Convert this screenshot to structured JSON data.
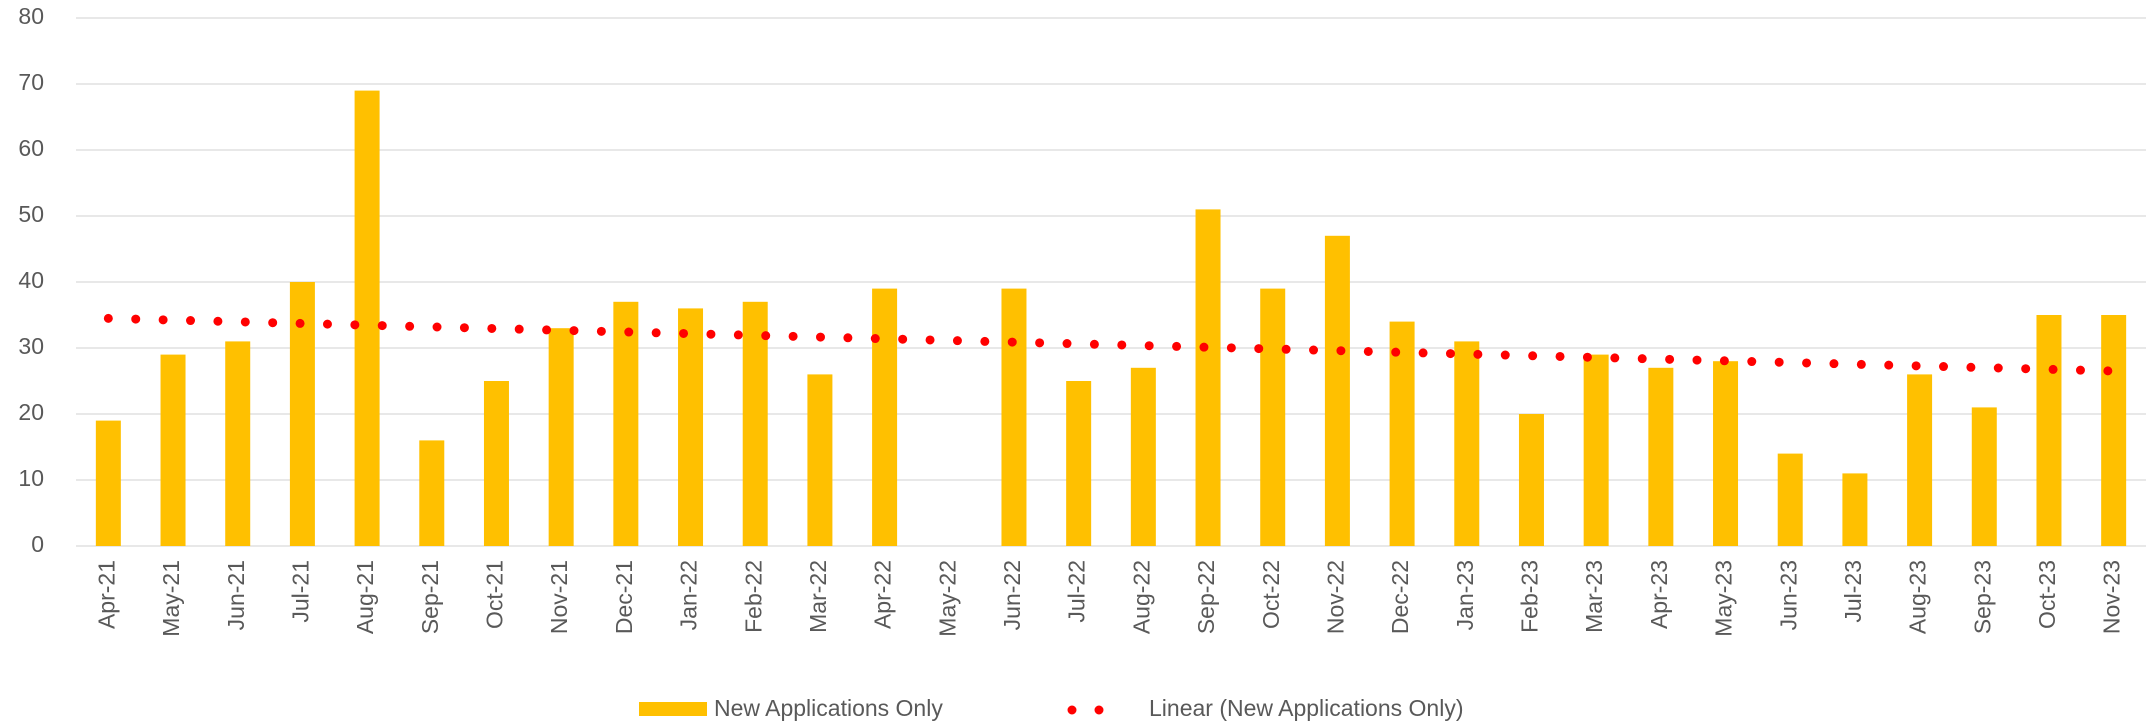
{
  "chart_data": {
    "type": "bar",
    "categories": [
      "Apr-21",
      "May-21",
      "Jun-21",
      "Jul-21",
      "Aug-21",
      "Sep-21",
      "Oct-21",
      "Nov-21",
      "Dec-21",
      "Jan-22",
      "Feb-22",
      "Mar-22",
      "Apr-22",
      "May-22",
      "Jun-22",
      "Jul-22",
      "Aug-22",
      "Sep-22",
      "Oct-22",
      "Nov-22",
      "Dec-22",
      "Jan-23",
      "Feb-23",
      "Mar-23",
      "Apr-23",
      "May-23",
      "Jun-23",
      "Jul-23",
      "Aug-23",
      "Sep-23",
      "Oct-23",
      "Nov-23"
    ],
    "series": [
      {
        "name": "New Applications Only",
        "color": "#ffc000",
        "values": [
          19,
          29,
          31,
          40,
          69,
          16,
          25,
          33,
          37,
          36,
          37,
          26,
          39,
          0,
          39,
          25,
          27,
          51,
          39,
          47,
          34,
          31,
          20,
          29,
          27,
          28,
          14,
          11,
          26,
          21,
          35,
          35
        ]
      }
    ],
    "trendline": {
      "name": "Linear (New Applications Only)",
      "kind": "linear",
      "color": "#ff0000"
    },
    "ylim": [
      0,
      80
    ],
    "yticks": [
      0,
      10,
      20,
      30,
      40,
      50,
      60,
      70,
      80
    ],
    "grid": true,
    "legend": "bottom"
  }
}
